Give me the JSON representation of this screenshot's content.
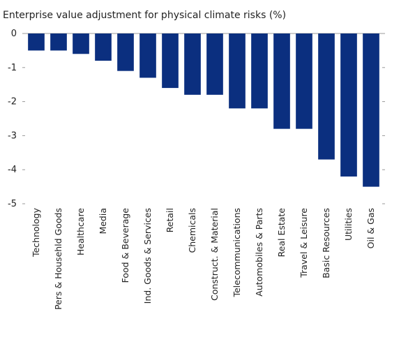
{
  "chart_data": {
    "type": "bar",
    "title": "Enterprise value adjustment for physical climate risks (%)",
    "xlabel": "",
    "ylabel": "",
    "ylim": [
      -5,
      0
    ],
    "yticks": [
      0,
      -1,
      -2,
      -3,
      -4,
      -5
    ],
    "grid": false,
    "legend": "none",
    "bar_color": "#0b2f7f",
    "categories": [
      "Technology",
      "Pers & Househld Goods",
      "Healthcare",
      "Media",
      "Food & Beverage",
      "Ind. Goods & Services",
      "Retail",
      "Chemicals",
      "Construct. & Material",
      "Telecommunications",
      "Automobiles & Parts",
      "Real Estate",
      "Travel & Leisure",
      "Basic Resources",
      "Utilities",
      "Oil & Gas"
    ],
    "values": [
      -0.5,
      -0.5,
      -0.6,
      -0.8,
      -1.1,
      -1.3,
      -1.6,
      -1.8,
      -1.8,
      -2.2,
      -2.2,
      -2.8,
      -2.8,
      -3.7,
      -4.2,
      -4.5
    ]
  }
}
